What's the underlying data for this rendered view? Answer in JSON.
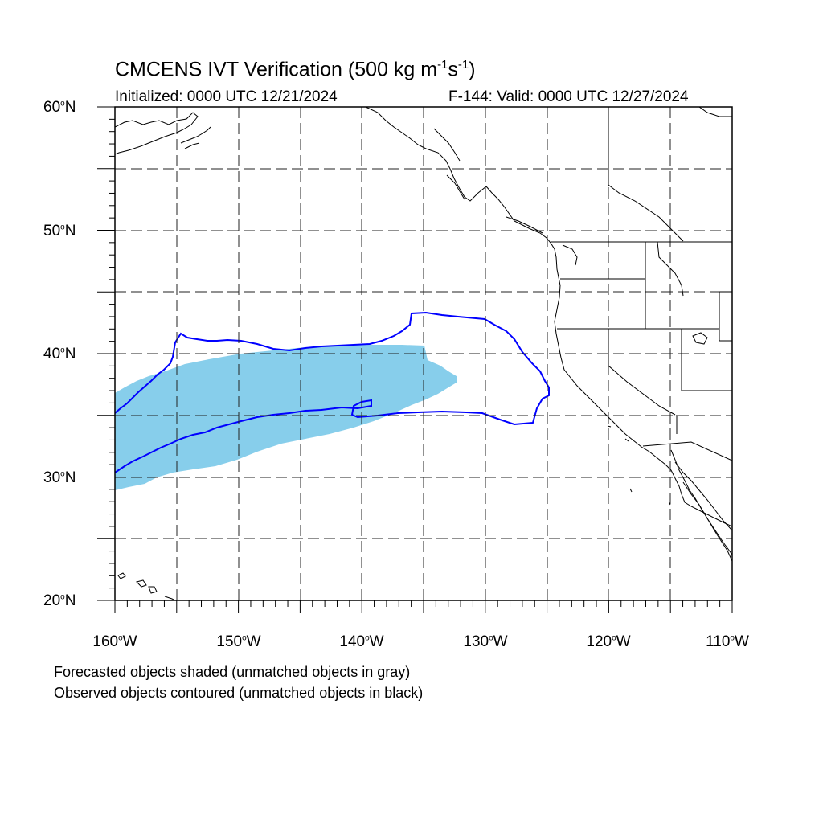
{
  "title": {
    "text": "CMCENS IVT Verification (500 kg m",
    "exp1": "-1",
    "mid": "s",
    "exp2": "-1",
    "end": ")"
  },
  "initialized": "Initialized: 0000 UTC 12/21/2024",
  "valid": "F-144: Valid: 0000 UTC 12/27/2024",
  "lat_labels": [
    {
      "deg": "60",
      "hem": "N"
    },
    {
      "deg": "50",
      "hem": "N"
    },
    {
      "deg": "40",
      "hem": "N"
    },
    {
      "deg": "30",
      "hem": "N"
    },
    {
      "deg": "20",
      "hem": "N"
    }
  ],
  "lon_labels": [
    {
      "deg": "160",
      "hem": "W"
    },
    {
      "deg": "150",
      "hem": "W"
    },
    {
      "deg": "140",
      "hem": "W"
    },
    {
      "deg": "130",
      "hem": "W"
    },
    {
      "deg": "120",
      "hem": "W"
    },
    {
      "deg": "110",
      "hem": "W"
    }
  ],
  "notes": [
    "Forecasted objects shaded (unmatched objects in gray)",
    "Observed objects contoured (unmatched objects in black)"
  ],
  "map": {
    "lon_range": [
      -160,
      -110
    ],
    "lat_range": [
      20,
      60
    ],
    "gridline_lons": [
      -155,
      -150,
      -145,
      -140,
      -135,
      -130,
      -125,
      -120,
      -115
    ],
    "gridline_lats": [
      25,
      30,
      35,
      40,
      45,
      50,
      55
    ],
    "forecast_color": "#87ceeb",
    "observed_color": "#0000ff",
    "coast_color": "#000000"
  }
}
